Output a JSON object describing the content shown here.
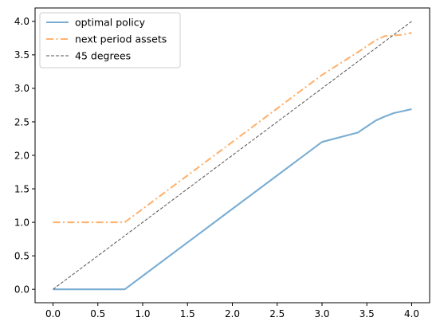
{
  "chart_data": {
    "type": "line",
    "title": "",
    "xlabel": "",
    "ylabel": "",
    "xlim": [
      -0.2,
      4.2
    ],
    "ylim": [
      -0.2,
      4.2
    ],
    "x_ticks": [
      0.0,
      0.5,
      1.0,
      1.5,
      2.0,
      2.5,
      3.0,
      3.5,
      4.0
    ],
    "y_ticks": [
      0.0,
      0.5,
      1.0,
      1.5,
      2.0,
      2.5,
      3.0,
      3.5,
      4.0
    ],
    "x_tick_labels": [
      "0.0",
      "0.5",
      "1.0",
      "1.5",
      "2.0",
      "2.5",
      "3.0",
      "3.5",
      "4.0"
    ],
    "y_tick_labels": [
      "0.0",
      "0.5",
      "1.0",
      "1.5",
      "2.0",
      "2.5",
      "3.0",
      "3.5",
      "4.0"
    ],
    "grid": false,
    "legend_position": "top-left",
    "series": [
      {
        "name": "optimal policy",
        "color": "#1f77b4",
        "style": "solid",
        "x": [
          0.0,
          0.2,
          0.4,
          0.6,
          0.8,
          1.0,
          1.5,
          2.0,
          2.5,
          3.0,
          3.4,
          3.6,
          3.7,
          3.8,
          3.9,
          4.0
        ],
        "y": [
          0.0,
          0.0,
          0.0,
          0.0,
          0.0,
          0.2,
          0.7,
          1.2,
          1.7,
          2.2,
          2.34,
          2.52,
          2.58,
          2.63,
          2.66,
          2.69
        ]
      },
      {
        "name": "next period assets",
        "color": "#ff7f0e",
        "style": "dashdot",
        "x": [
          0.0,
          0.2,
          0.4,
          0.6,
          0.8,
          1.0,
          1.5,
          2.0,
          2.5,
          3.0,
          3.4,
          3.6,
          3.7,
          3.8,
          3.9,
          4.0
        ],
        "y": [
          1.0,
          1.0,
          1.0,
          1.0,
          1.0,
          1.2,
          1.7,
          2.2,
          2.7,
          3.2,
          3.54,
          3.72,
          3.78,
          3.79,
          3.8,
          3.83
        ]
      },
      {
        "name": "45 degrees",
        "color": "#555555",
        "style": "dashed",
        "x": [
          0.0,
          4.0
        ],
        "y": [
          0.0,
          4.0
        ]
      }
    ]
  }
}
